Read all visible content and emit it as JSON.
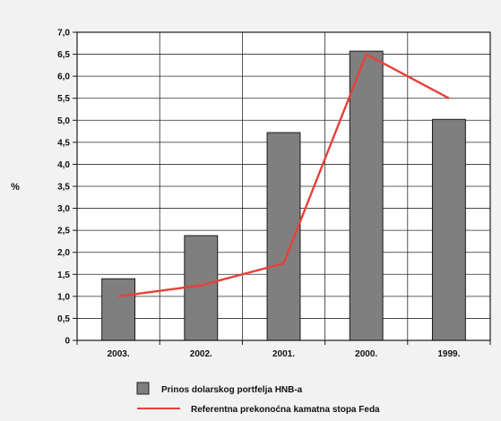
{
  "chart_data": {
    "type": "bar",
    "ylabel": "%",
    "ylim": [
      0,
      7.0
    ],
    "ytick_labels": [
      "0",
      "0,5",
      "1,0",
      "1,5",
      "2,0",
      "2,5",
      "3,0",
      "3,5",
      "4,0",
      "4,5",
      "5,0",
      "5,5",
      "6,0",
      "6,5",
      "7,0"
    ],
    "categories": [
      "2003.",
      "2002.",
      "2001.",
      "2000.",
      "1999."
    ],
    "grid": true,
    "legend_position": "bottom",
    "series": [
      {
        "name": "Prinos dolarskog portfelja HNB-a",
        "kind": "bar",
        "color": "#7f7f7f",
        "values": [
          1.4,
          2.38,
          4.72,
          6.57,
          5.02
        ]
      },
      {
        "name": "Referentna prekonoćna kamatna stopa Feda",
        "kind": "line",
        "color": "#e8403a",
        "values": [
          1.0,
          1.25,
          1.75,
          6.5,
          5.5
        ]
      }
    ]
  }
}
